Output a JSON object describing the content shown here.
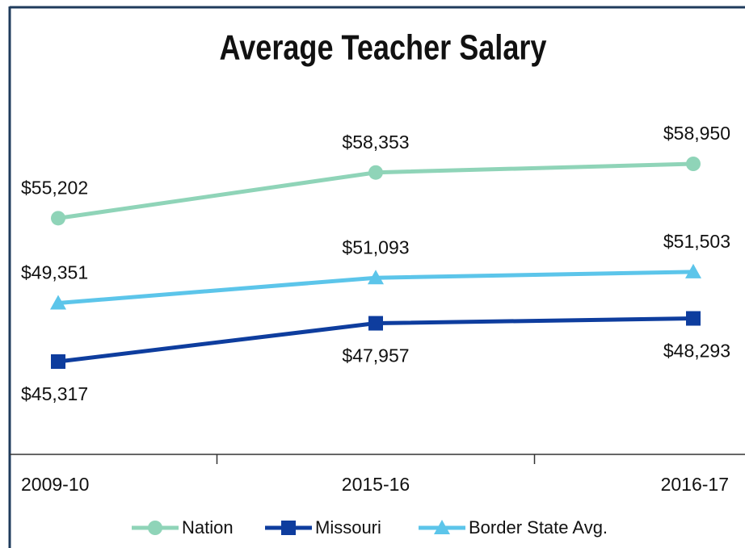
{
  "chart_data": {
    "type": "line",
    "title": "Average Teacher Salary",
    "categories": [
      "2009-10",
      "2015-16",
      "2016-17"
    ],
    "series": [
      {
        "name": "Nation",
        "color": "#8fd4b8",
        "marker": "circle",
        "values": [
          55202,
          58353,
          58950
        ],
        "value_labels": [
          "$55,202",
          "$58,353",
          "$58,950"
        ]
      },
      {
        "name": "Missouri",
        "color": "#0e3d9e",
        "marker": "square",
        "values": [
          45317,
          47957,
          48293
        ],
        "value_labels": [
          "$45,317",
          "$47,957",
          "$48,293"
        ]
      },
      {
        "name": "Border State Avg.",
        "color": "#5cc5ea",
        "marker": "triangle",
        "values": [
          49351,
          51093,
          51503
        ],
        "value_labels": [
          "$49,351",
          "$51,093",
          "$51,503"
        ]
      }
    ],
    "legend": "bottom"
  }
}
